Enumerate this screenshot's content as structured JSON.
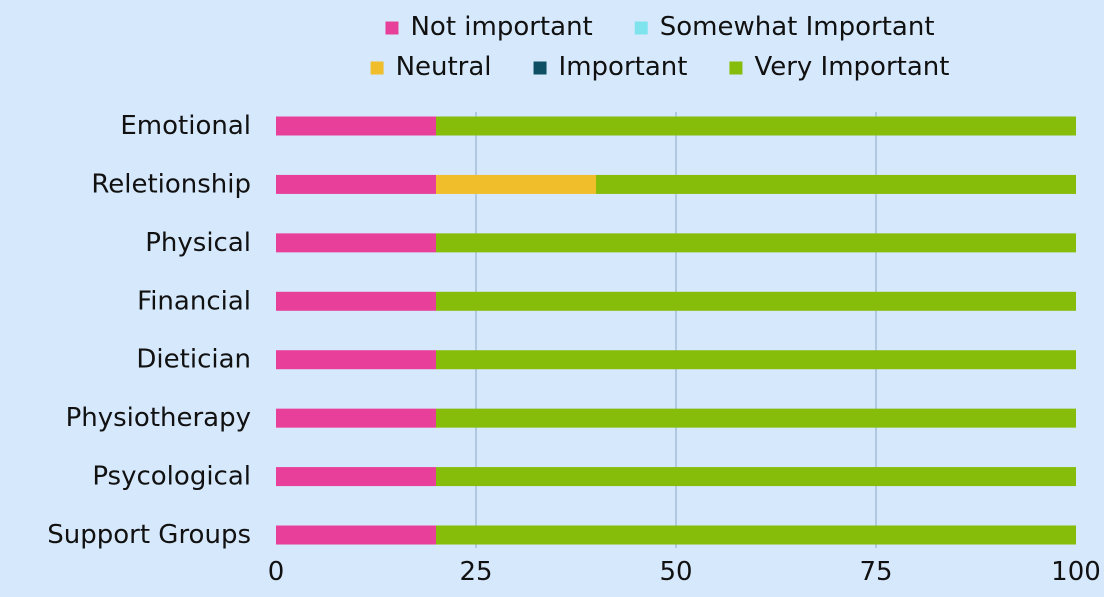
{
  "chart_data": {
    "type": "bar",
    "orientation": "horizontal",
    "stacked": true,
    "categories": [
      "Emotional",
      "Reletionship",
      "Physical",
      "Financial",
      "Dietician",
      "Physiotherapy",
      "Psycological",
      "Support Groups"
    ],
    "series": [
      {
        "name": "Not important",
        "color": "#e8409a",
        "values": [
          20,
          20,
          20,
          20,
          20,
          20,
          20,
          20
        ]
      },
      {
        "name": "Somewhat Important",
        "color": "#7fe3ee",
        "values": [
          0,
          0,
          0,
          0,
          0,
          0,
          0,
          0
        ]
      },
      {
        "name": "Neutral",
        "color": "#f0be2a",
        "values": [
          0,
          20,
          0,
          0,
          0,
          0,
          0,
          0
        ]
      },
      {
        "name": "Important",
        "color": "#0e4f63",
        "values": [
          0,
          0,
          0,
          0,
          0,
          0,
          0,
          0
        ]
      },
      {
        "name": "Very Important",
        "color": "#86bc0a",
        "values": [
          80,
          60,
          80,
          80,
          80,
          80,
          80,
          80
        ]
      }
    ],
    "xlim": [
      0,
      100
    ],
    "xticks": [
      "0",
      "25",
      "50",
      "75",
      "100"
    ],
    "grid": true,
    "legend_position": "top"
  }
}
